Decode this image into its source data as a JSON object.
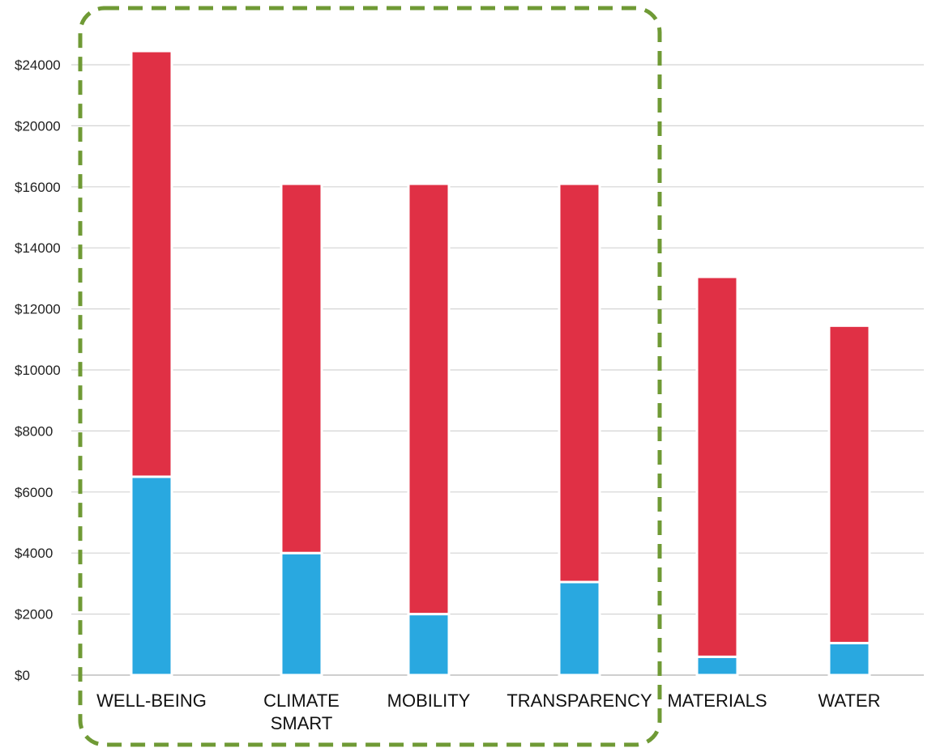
{
  "chart_data": {
    "type": "bar",
    "stacked": true,
    "title": "",
    "xlabel": "",
    "ylabel": "",
    "ylim": [
      0,
      26000
    ],
    "grid": true,
    "legend": "none",
    "y_ticks": [
      "$0",
      "$2000",
      "$4000",
      "$6000",
      "$8000",
      "$10000",
      "$12000",
      "$14000",
      "$16000",
      "$20000",
      "$24000"
    ],
    "y_tick_values": [
      0,
      2000,
      4000,
      6000,
      8000,
      10000,
      12000,
      14000,
      16000,
      20000,
      24000
    ],
    "categories": [
      [
        "WELL-BEING"
      ],
      [
        "CLIMATE",
        "SMART"
      ],
      [
        "MOBILITY"
      ],
      [
        "TRANSPARENCY"
      ],
      [
        "MATERIALS"
      ],
      [
        "WATER"
      ]
    ],
    "series": [
      {
        "color": "#29a8e0",
        "values": [
          6500,
          4000,
          2000,
          3050,
          600,
          1050
        ]
      },
      {
        "color": "#e03045",
        "values": [
          18400,
          12200,
          14200,
          13150,
          12450,
          10400
        ]
      }
    ],
    "highlight": {
      "categories": [
        "WELL-BEING",
        "CLIMATE SMART",
        "MOBILITY",
        "TRANSPARENCY"
      ],
      "style": "dashed-rounded-box",
      "color": "#6f9a35"
    }
  }
}
